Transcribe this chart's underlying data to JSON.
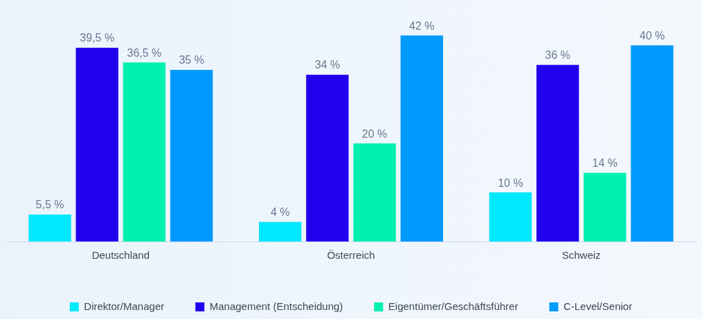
{
  "chart_data": {
    "type": "bar",
    "categories": [
      "Deutschland",
      "Österreich",
      "Schweiz"
    ],
    "series": [
      {
        "name": "Direktor/Manager",
        "color": "#00e8fc",
        "values": [
          5.5,
          4,
          10
        ],
        "value_labels": [
          "5,5 %",
          "4 %",
          "10 %"
        ]
      },
      {
        "name": "Management (Entscheidung)",
        "color": "#2200ee",
        "values": [
          39.5,
          34,
          36
        ],
        "value_labels": [
          "39,5 %",
          "34 %",
          "36 %"
        ]
      },
      {
        "name": "Eigentümer/Geschäftsführer",
        "color": "#00f0b0",
        "values": [
          36.5,
          20,
          14
        ],
        "value_labels": [
          "36,5 %",
          "20 %",
          "14 %"
        ]
      },
      {
        "name": "C-Level/Senior",
        "color": "#0099fc",
        "values": [
          35,
          42,
          40
        ],
        "value_labels": [
          "35 %",
          "42 %",
          "40 %"
        ]
      }
    ],
    "legend": "bottom",
    "grid": false
  }
}
